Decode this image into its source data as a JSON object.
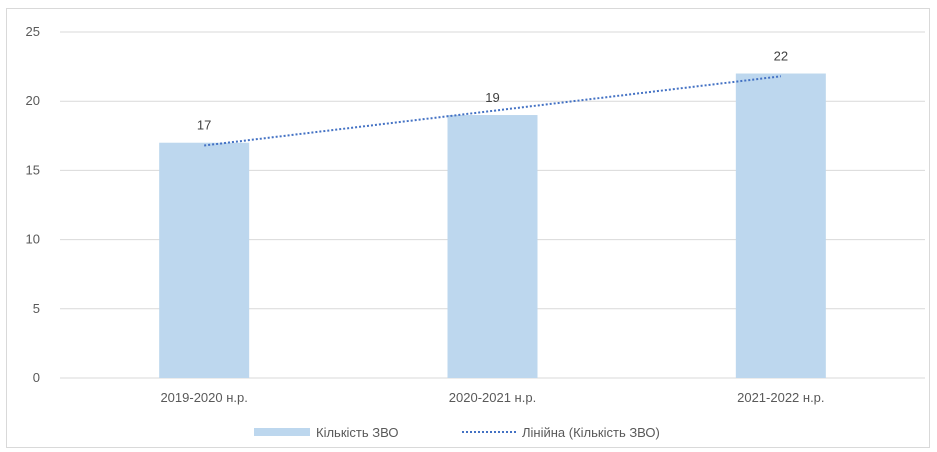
{
  "chart_data": {
    "type": "bar",
    "title": "",
    "xlabel": "",
    "ylabel": "",
    "categories": [
      "2019-2020 н.р.",
      "2020-2021 н.р.",
      "2021-2022 н.р."
    ],
    "series": [
      {
        "name": "Кількість ЗВО",
        "values": [
          17,
          19,
          22
        ],
        "color": "#bdd7ee",
        "data_labels": [
          "17",
          "19",
          "22"
        ]
      }
    ],
    "trendline": {
      "type": "linear",
      "name": "Лінійна (Кількість ЗВО)",
      "values": [
        16.8,
        19.3,
        21.8
      ],
      "color": "#4472c4",
      "style": "dotted"
    },
    "ylim": [
      0,
      25
    ],
    "yticks": [
      "0",
      "5",
      "10",
      "15",
      "20",
      "25"
    ],
    "grid": true,
    "legend": "bottom"
  }
}
